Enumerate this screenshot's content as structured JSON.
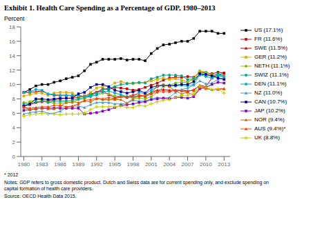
{
  "chart_data": {
    "type": "line",
    "title": "Exhibit 1. Health Care Spending as a Percentage of GDP, 1980–2013",
    "ylabel": "Percent",
    "x": [
      1980,
      1981,
      1982,
      1983,
      1984,
      1985,
      1986,
      1987,
      1988,
      1989,
      1990,
      1991,
      1992,
      1993,
      1994,
      1995,
      1996,
      1997,
      1998,
      1999,
      2000,
      2001,
      2002,
      2003,
      2004,
      2005,
      2006,
      2007,
      2008,
      2009,
      2010,
      2011,
      2012,
      2013
    ],
    "series": [
      {
        "name": "US (17.1%)",
        "color": "#000000",
        "marker": "square",
        "values": [
          8.9,
          9.3,
          9.8,
          10.0,
          10.0,
          10.3,
          10.5,
          10.8,
          11.0,
          11.2,
          11.9,
          12.8,
          13.1,
          13.5,
          13.5,
          13.5,
          13.6,
          13.4,
          13.5,
          13.5,
          13.3,
          14.3,
          15.0,
          15.5,
          15.6,
          15.8,
          16.0,
          16.0,
          16.4,
          17.4,
          17.4,
          17.4,
          17.1,
          17.1
        ]
      },
      {
        "name": "FR (11.6%)",
        "color": "#cc0000",
        "marker": "square",
        "values": [
          7.0,
          7.2,
          7.5,
          7.6,
          7.7,
          7.9,
          8.0,
          8.1,
          8.1,
          8.2,
          8.4,
          8.7,
          8.9,
          9.4,
          9.3,
          9.6,
          9.5,
          9.4,
          9.2,
          9.3,
          9.6,
          9.9,
          10.2,
          10.6,
          10.9,
          11.0,
          11.0,
          11.1,
          11.0,
          11.7,
          11.6,
          11.5,
          11.7,
          11.6
        ]
      },
      {
        "name": "SWE (11.5%)",
        "color": "#cc0000",
        "marker": "triangle",
        "values": [
          8.9,
          8.9,
          9.0,
          9.1,
          8.7,
          8.5,
          8.5,
          8.5,
          8.4,
          8.5,
          8.3,
          8.4,
          8.9,
          9.1,
          8.6,
          8.2,
          8.3,
          8.2,
          8.3,
          8.4,
          8.4,
          8.9,
          9.2,
          9.3,
          9.2,
          9.2,
          9.2,
          9.1,
          9.2,
          9.9,
          9.7,
          10.9,
          11.4,
          11.5
        ]
      },
      {
        "name": "GER (11.2%)",
        "color": "#ddaa00",
        "marker": "square",
        "values": [
          8.4,
          8.6,
          8.8,
          8.8,
          8.5,
          8.8,
          8.9,
          8.9,
          8.8,
          8.4,
          8.3,
          8.9,
          9.5,
          9.7,
          9.7,
          10.2,
          10.4,
          10.2,
          10.1,
          10.2,
          10.3,
          10.5,
          10.7,
          10.9,
          10.7,
          10.8,
          10.6,
          10.4,
          10.7,
          11.8,
          11.7,
          11.2,
          11.3,
          11.2
        ]
      },
      {
        "name": "NETH (11.1%)",
        "color": "#88bb00",
        "marker": "circle",
        "values": [
          7.5,
          7.6,
          7.9,
          7.9,
          7.6,
          7.4,
          7.4,
          7.5,
          7.5,
          7.9,
          8.0,
          8.4,
          8.5,
          8.8,
          8.7,
          8.4,
          8.4,
          8.3,
          8.1,
          8.1,
          8.0,
          8.3,
          8.9,
          9.7,
          9.9,
          10.2,
          10.3,
          10.3,
          10.9,
          11.9,
          11.7,
          11.4,
          11.4,
          11.1
        ]
      },
      {
        "name": "SWIZ (11.1%)",
        "color": "#00aa88",
        "marker": "circle",
        "values": [
          7.3,
          7.3,
          7.6,
          7.7,
          7.5,
          7.7,
          7.7,
          7.7,
          7.8,
          8.0,
          8.2,
          8.6,
          8.8,
          9.3,
          9.5,
          9.7,
          10.0,
          10.1,
          10.2,
          10.3,
          10.2,
          10.8,
          11.0,
          11.3,
          11.3,
          11.3,
          11.2,
          10.7,
          10.8,
          11.3,
          11.4,
          11.1,
          11.5,
          11.1
        ]
      },
      {
        "name": "DEN (11.1%)",
        "color": "#00aacc",
        "marker": "circle",
        "values": [
          8.9,
          9.0,
          9.3,
          9.2,
          8.7,
          8.6,
          8.5,
          8.5,
          8.5,
          8.5,
          8.3,
          8.3,
          8.6,
          9.0,
          9.1,
          8.8,
          8.6,
          8.3,
          8.4,
          8.9,
          8.7,
          9.2,
          9.7,
          9.9,
          9.9,
          9.8,
          9.9,
          9.8,
          10.0,
          11.4,
          11.1,
          10.9,
          11.2,
          11.1
        ]
      },
      {
        "name": "NZ (11.0%)",
        "color": "#4499cc",
        "marker": "triangle",
        "values": [
          5.9,
          6.1,
          6.2,
          6.3,
          6.0,
          6.0,
          6.3,
          6.8,
          7.0,
          7.0,
          6.8,
          7.2,
          7.5,
          7.5,
          7.5,
          7.3,
          7.3,
          7.4,
          7.8,
          7.7,
          7.7,
          8.0,
          8.2,
          8.1,
          8.2,
          8.9,
          9.3,
          9.5,
          9.9,
          10.5,
          10.1,
          10.2,
          10.7,
          11.0
        ]
      },
      {
        "name": "CAN (10.7%)",
        "color": "#000099",
        "marker": "square",
        "values": [
          7.0,
          7.3,
          8.0,
          8.0,
          7.9,
          8.0,
          8.1,
          8.1,
          8.1,
          8.7,
          8.9,
          9.6,
          10.0,
          10.0,
          9.7,
          9.2,
          9.0,
          8.8,
          9.0,
          9.2,
          8.8,
          9.6,
          9.8,
          9.9,
          9.8,
          9.9,
          10.0,
          10.0,
          10.4,
          11.5,
          11.4,
          11.2,
          10.9,
          10.7
        ]
      },
      {
        "name": "JAP (10.2%)",
        "color": "#8800bb",
        "marker": "square",
        "values": [
          6.4,
          6.5,
          6.6,
          6.7,
          6.7,
          6.7,
          6.7,
          6.7,
          6.7,
          6.7,
          5.9,
          6.0,
          6.1,
          6.3,
          6.5,
          6.8,
          7.1,
          7.2,
          7.3,
          7.5,
          7.6,
          7.9,
          8.0,
          8.1,
          8.0,
          8.2,
          8.2,
          8.1,
          8.3,
          9.4,
          9.6,
          10.0,
          10.3,
          10.2
        ]
      },
      {
        "name": "NOR (9.4%)",
        "color": "#cc6600",
        "marker": "triangle",
        "values": [
          6.9,
          6.5,
          6.6,
          6.7,
          6.6,
          6.6,
          7.0,
          7.5,
          7.6,
          7.5,
          7.7,
          7.6,
          8.0,
          7.9,
          7.9,
          7.9,
          7.9,
          7.4,
          8.0,
          8.5,
          8.5,
          8.8,
          9.8,
          10.0,
          9.7,
          9.1,
          8.7,
          8.9,
          8.5,
          9.6,
          9.4,
          9.3,
          9.3,
          9.4
        ]
      },
      {
        "name": "AUS (9.4%)*",
        "color": "#ee4400",
        "marker": "triangle",
        "values": [
          6.8,
          6.7,
          6.8,
          6.9,
          6.9,
          7.1,
          7.1,
          6.9,
          7.0,
          7.3,
          7.8,
          7.9,
          8.1,
          8.0,
          8.2,
          8.0,
          8.3,
          8.3,
          8.6,
          8.6,
          8.3,
          8.7,
          9.0,
          9.0,
          9.0,
          9.2,
          9.1,
          9.0,
          9.3,
          9.8,
          9.5,
          9.3,
          9.4,
          9.4
        ]
      },
      {
        "name": "UK (8.8%)",
        "color": "#cccc00",
        "marker": "plus",
        "values": [
          5.6,
          5.8,
          5.9,
          6.0,
          5.9,
          5.9,
          5.8,
          5.9,
          5.9,
          5.9,
          6.0,
          6.5,
          6.9,
          6.9,
          6.9,
          6.9,
          7.0,
          6.8,
          6.8,
          7.1,
          7.0,
          7.3,
          7.6,
          7.8,
          7.9,
          8.2,
          8.5,
          8.5,
          8.8,
          9.8,
          9.6,
          9.3,
          9.4,
          8.8
        ]
      }
    ],
    "xlim": [
      1979.5,
      2014.0
    ],
    "ylim": [
      0,
      18
    ],
    "yticks": [
      0,
      2,
      4,
      6,
      8,
      10,
      12,
      14,
      16,
      18
    ],
    "xticks": [
      1980,
      1983,
      1986,
      1989,
      1992,
      1995,
      1998,
      2001,
      2004,
      2007,
      2010,
      2013
    ],
    "grid": false,
    "legend": "right",
    "annotations": [
      "* 2012",
      "Notes: GDP refers to gross domestic product. Dutch and Swiss data are for current spending only, and exclude spending on\ncapital formation of health care providers.",
      "Source: OECD Health Data 2015."
    ]
  }
}
